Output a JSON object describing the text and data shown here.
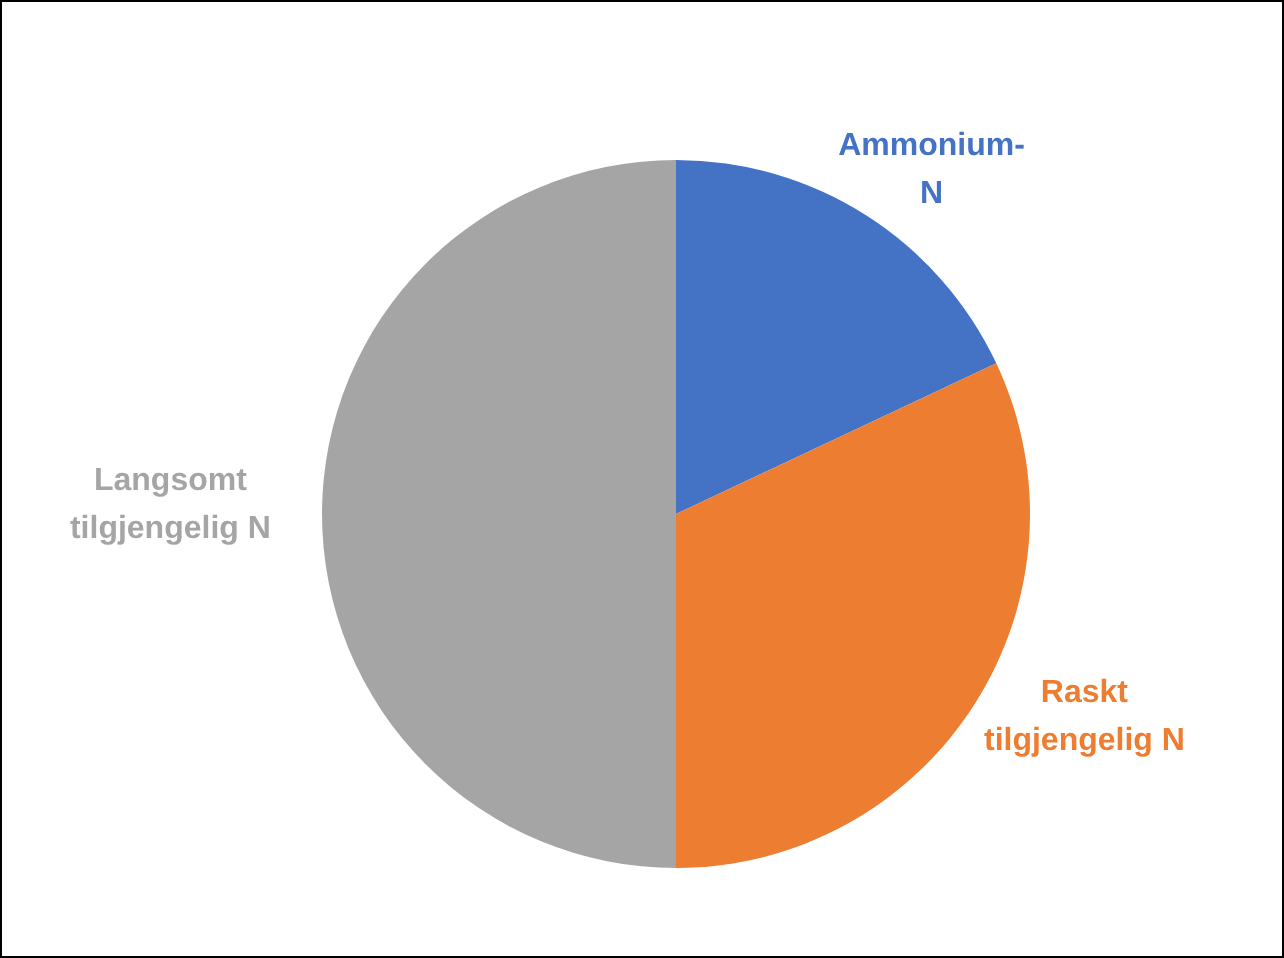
{
  "chart_data": {
    "type": "pie",
    "categories": [
      "Ammonium-N",
      "Raskt tilgjengelig N",
      "Langsomt tilgjengelig N"
    ],
    "values": [
      18,
      32,
      50
    ],
    "colors": [
      "#4472c4",
      "#ed7d31",
      "#a5a5a5"
    ],
    "legend": false
  }
}
